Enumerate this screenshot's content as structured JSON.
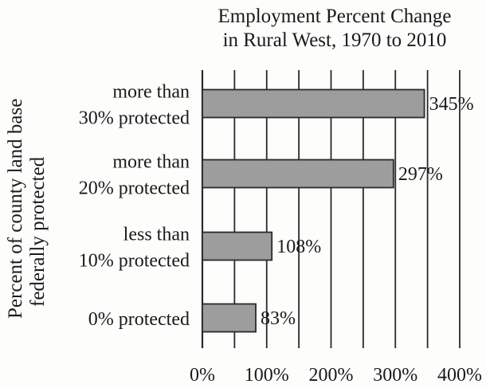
{
  "chart_data": {
    "type": "bar",
    "orientation": "horizontal",
    "title": [
      "Employment Percent Change",
      "in Rural West, 1970 to 2010"
    ],
    "ylabel": [
      "Percent of county land base",
      "federally protected"
    ],
    "xlabel": "",
    "xlim": [
      0,
      400
    ],
    "x_ticks": [
      "0%",
      "100%",
      "200%",
      "300%",
      "400%"
    ],
    "grid": "vertical",
    "categories": [
      [
        "more than",
        "30% protected"
      ],
      [
        "more than",
        "20% protected"
      ],
      [
        "less than",
        "10% protected"
      ],
      [
        "0% protected"
      ]
    ],
    "values": [
      345,
      297,
      108,
      83
    ],
    "value_labels": [
      "345%",
      "297%",
      "108%",
      "83%"
    ],
    "colors": {
      "bar_fill": "#9d9d9d",
      "bar_stroke": "#2a2a2a",
      "grid": "#2a2a2a",
      "text": "#1a1a1a"
    }
  }
}
